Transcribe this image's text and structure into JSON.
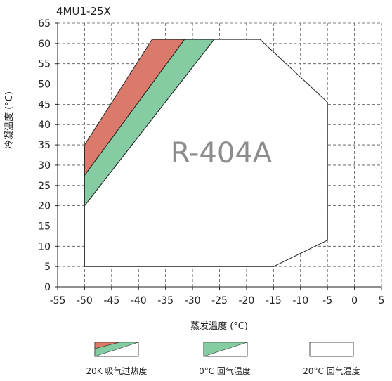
{
  "chart_data": {
    "type": "area",
    "title": "4MU1-25X",
    "xlabel": "蒸发温度 (°C)",
    "ylabel": "冷凝温度 (°C)",
    "xlim": [
      -55,
      5
    ],
    "ylim": [
      0,
      65
    ],
    "xticks": [
      -55,
      -50,
      -45,
      -40,
      -35,
      -30,
      -25,
      -20,
      -15,
      -10,
      -5,
      0,
      5
    ],
    "yticks": [
      0,
      5,
      10,
      15,
      20,
      25,
      30,
      35,
      40,
      45,
      50,
      55,
      60,
      65
    ],
    "xtick_labels": [
      "-55",
      "-50",
      "-45",
      "-40",
      "-35",
      "-30",
      "-25",
      "-20",
      "-15",
      "-10",
      "-5",
      "0",
      "5"
    ],
    "ytick_labels": [
      "0",
      "5",
      "10",
      "15",
      "20",
      "25",
      "30",
      "35",
      "40",
      "45",
      "50",
      "55",
      "60",
      "65"
    ],
    "grid": true,
    "annotation": "R-404A",
    "series": [
      {
        "name": "20K 吸气过热度",
        "color": "#d97a6a",
        "polygon": [
          [
            -50,
            27.5
          ],
          [
            -50,
            35
          ],
          [
            -37.5,
            61
          ],
          [
            -31.5,
            61
          ]
        ]
      },
      {
        "name": "0°C 回气温度",
        "color": "#85cca3",
        "polygon": [
          [
            -50,
            20
          ],
          [
            -50,
            27.5
          ],
          [
            -31.5,
            61
          ],
          [
            -26,
            61
          ]
        ]
      },
      {
        "name": "20°C 回气温度",
        "color": "#ffffff",
        "polygon": [
          [
            -50,
            5
          ],
          [
            -50,
            20
          ],
          [
            -26,
            61
          ],
          [
            -17.5,
            61
          ],
          [
            -5,
            45.5
          ],
          [
            -5,
            11.5
          ],
          [
            -15,
            5
          ]
        ]
      }
    ]
  },
  "legend": {
    "items": [
      {
        "label": "20K 吸气过热度"
      },
      {
        "label": "0°C 回气温度"
      },
      {
        "label": "20°C 回气温度"
      }
    ]
  }
}
